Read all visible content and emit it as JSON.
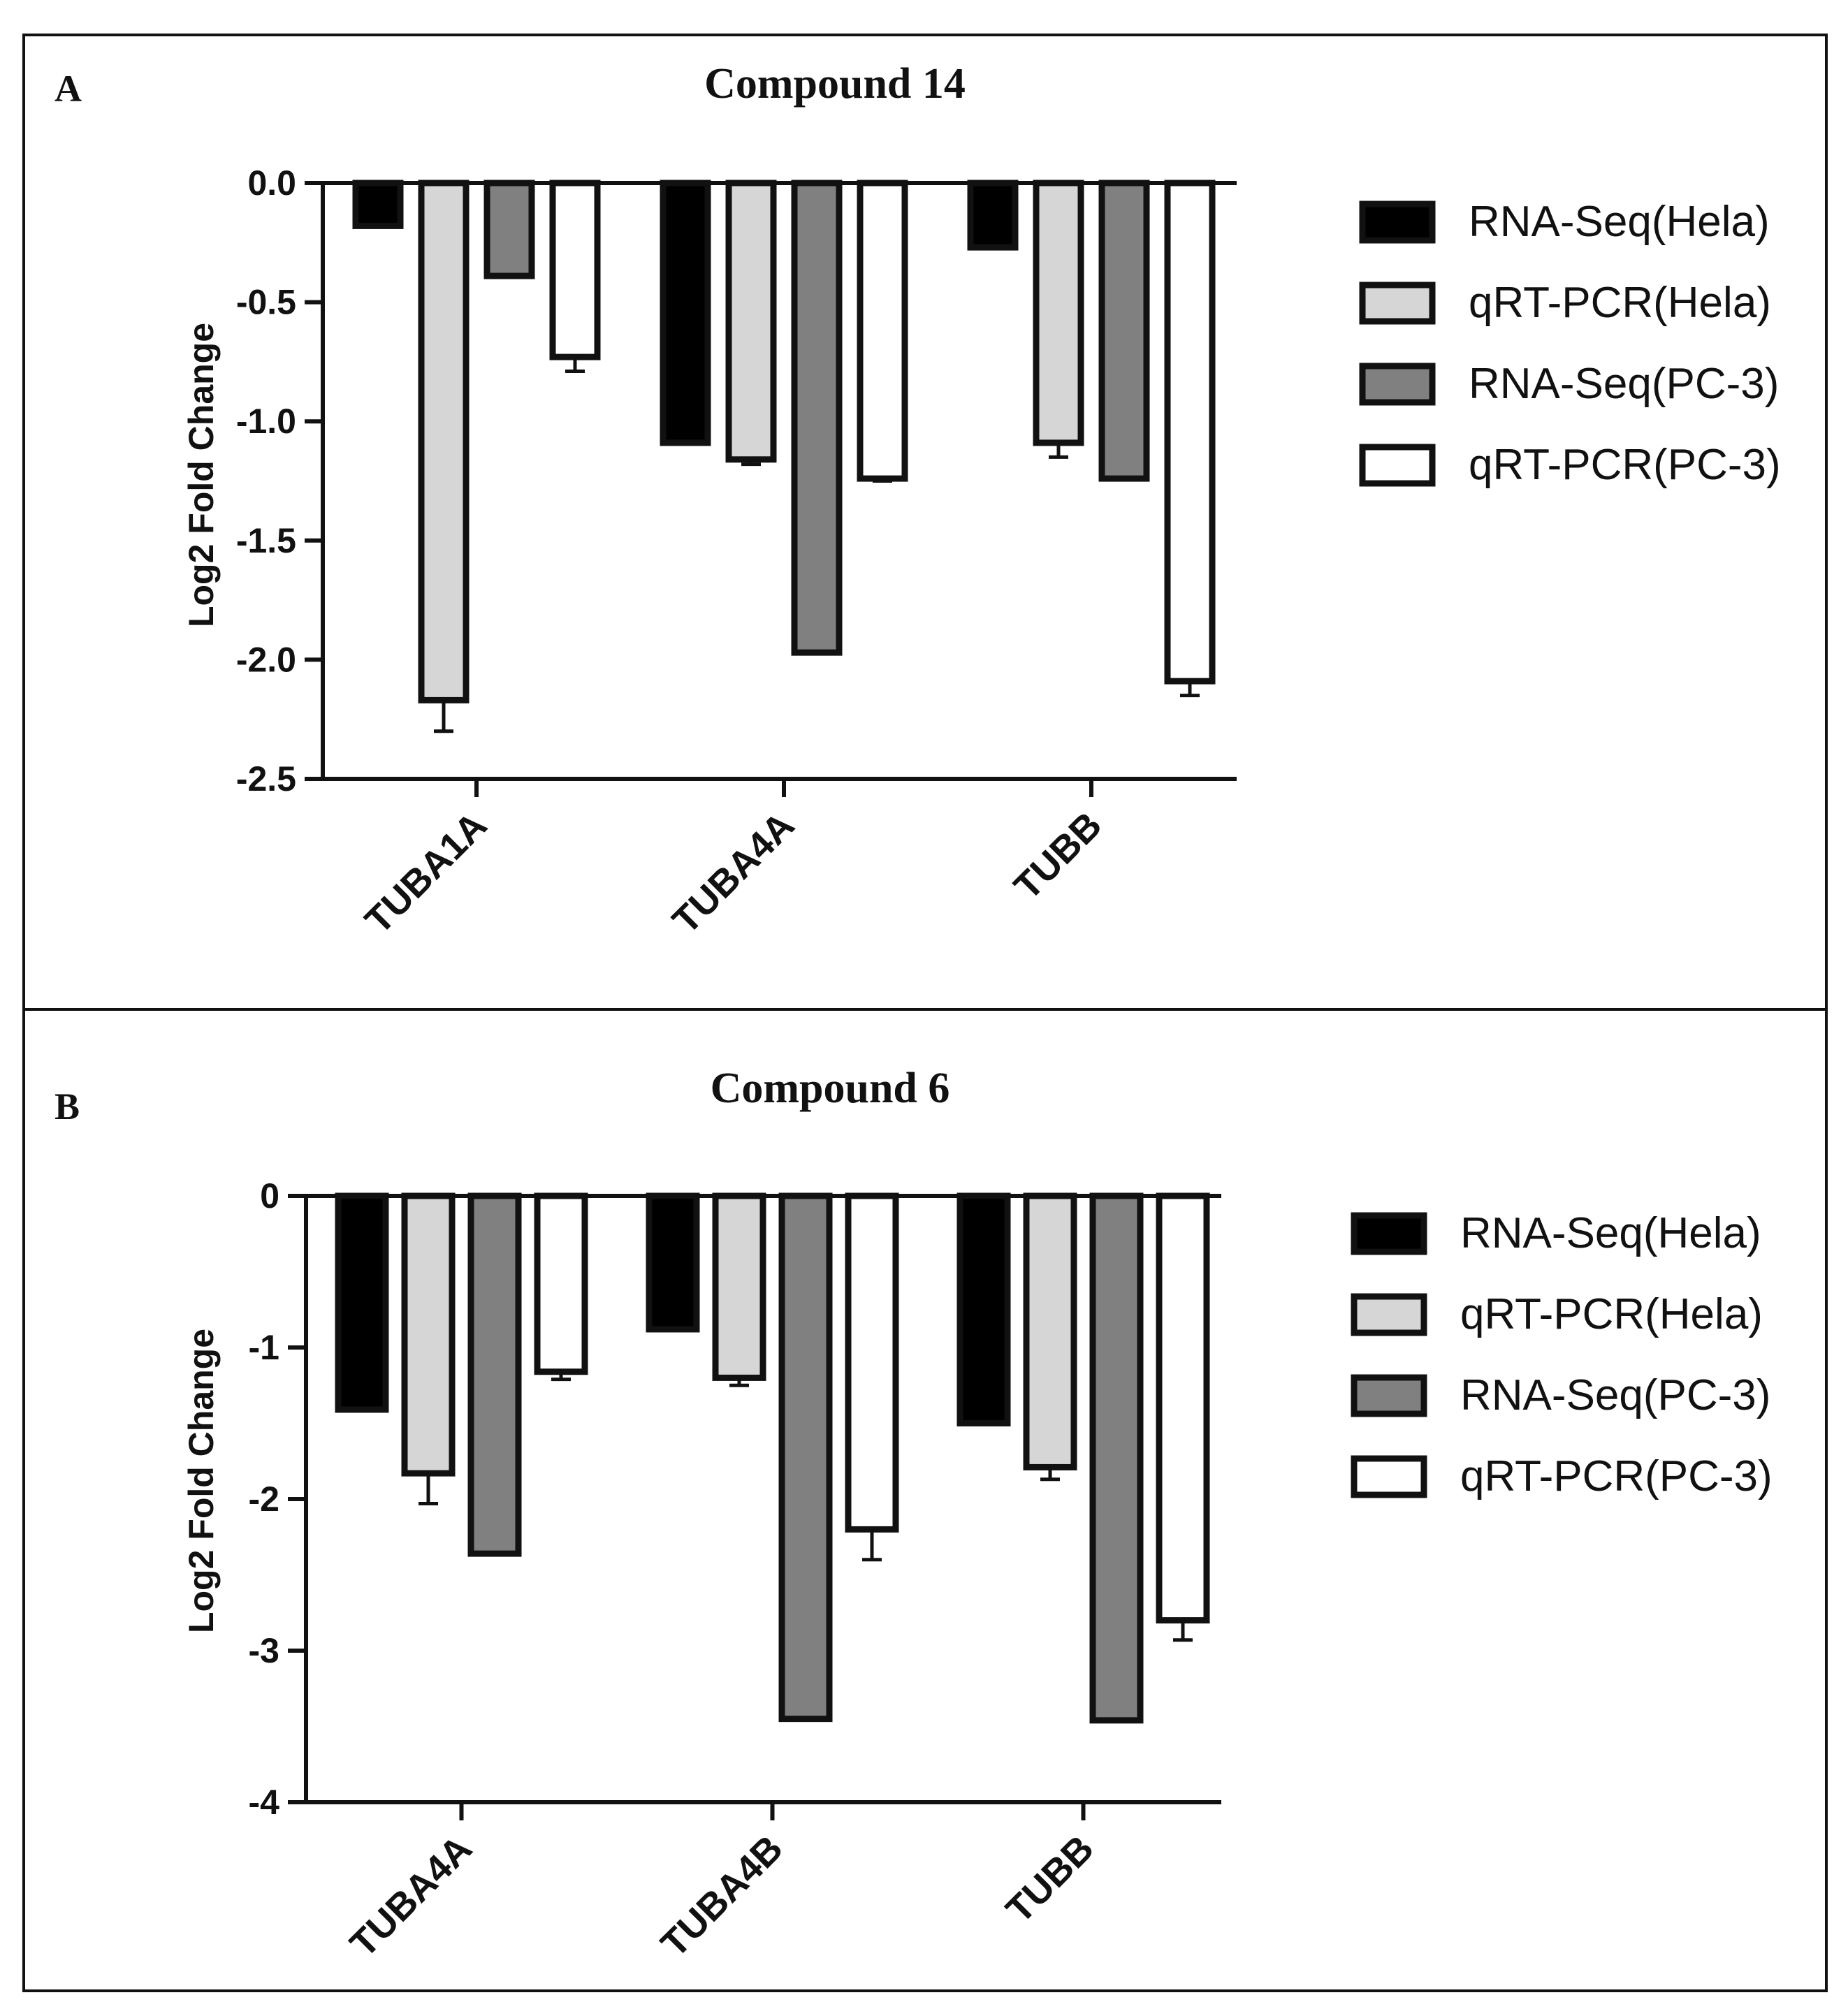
{
  "figure": {
    "panels": [
      {
        "letter": "A"
      },
      {
        "letter": "B"
      }
    ]
  },
  "series_styles": [
    {
      "name": "RNA-Seq(Hela)",
      "fill": "#000000"
    },
    {
      "name": "qRT-PCR(Hela)",
      "fill": "#d6d6d6"
    },
    {
      "name": "RNA-Seq(PC-3)",
      "fill": "#808080"
    },
    {
      "name": "qRT-PCR(PC-3)",
      "fill": "#ffffff"
    }
  ],
  "chart_data": [
    {
      "type": "bar",
      "title": "Compound 14",
      "xlabel": "",
      "ylabel": "Log2 Fold Change",
      "ylim": [
        -2.5,
        0
      ],
      "yticks": [
        0,
        -0.5,
        -1,
        -1.5,
        -2,
        -2.5
      ],
      "ytick_labels": [
        "0.0",
        "-0.5",
        "-1.0",
        "-1.5",
        "-2.0",
        "-2.5"
      ],
      "categories": [
        "TUBA1A",
        "TUBA4A",
        "TUBB"
      ],
      "legend_position": "right",
      "series": [
        {
          "name": "RNA-Seq(Hela)",
          "values": [
            -0.18,
            -1.09,
            -0.27
          ],
          "errors": [
            null,
            null,
            null
          ]
        },
        {
          "name": "qRT-PCR(Hela)",
          "values": [
            -2.17,
            -1.16,
            -1.09
          ],
          "errors": [
            0.13,
            0.02,
            0.06
          ]
        },
        {
          "name": "RNA-Seq(PC-3)",
          "values": [
            -0.39,
            -1.97,
            -1.24
          ],
          "errors": [
            null,
            null,
            null
          ]
        },
        {
          "name": "qRT-PCR(PC-3)",
          "values": [
            -0.73,
            -1.24,
            -2.09
          ],
          "errors": [
            0.06,
            0.01,
            0.06
          ]
        }
      ]
    },
    {
      "type": "bar",
      "title": "Compound 6",
      "xlabel": "",
      "ylabel": "Log2 Fold Change",
      "ylim": [
        -4,
        0
      ],
      "yticks": [
        0,
        -1,
        -2,
        -3,
        -4
      ],
      "ytick_labels": [
        "0",
        "-1",
        "-2",
        "-3",
        "-4"
      ],
      "categories": [
        "TUBA4A",
        "TUBA4B",
        "TUBB"
      ],
      "legend_position": "right",
      "series": [
        {
          "name": "RNA-Seq(Hela)",
          "values": [
            -1.41,
            -0.88,
            -1.5
          ],
          "errors": [
            null,
            null,
            null
          ]
        },
        {
          "name": "qRT-PCR(Hela)",
          "values": [
            -1.83,
            -1.2,
            -1.79
          ],
          "errors": [
            0.2,
            0.05,
            0.08
          ]
        },
        {
          "name": "RNA-Seq(PC-3)",
          "values": [
            -2.36,
            -3.45,
            -3.46
          ],
          "errors": [
            null,
            null,
            null
          ]
        },
        {
          "name": "qRT-PCR(PC-3)",
          "values": [
            -1.16,
            -2.2,
            -2.8
          ],
          "errors": [
            0.05,
            0.2,
            0.13
          ]
        }
      ]
    }
  ]
}
